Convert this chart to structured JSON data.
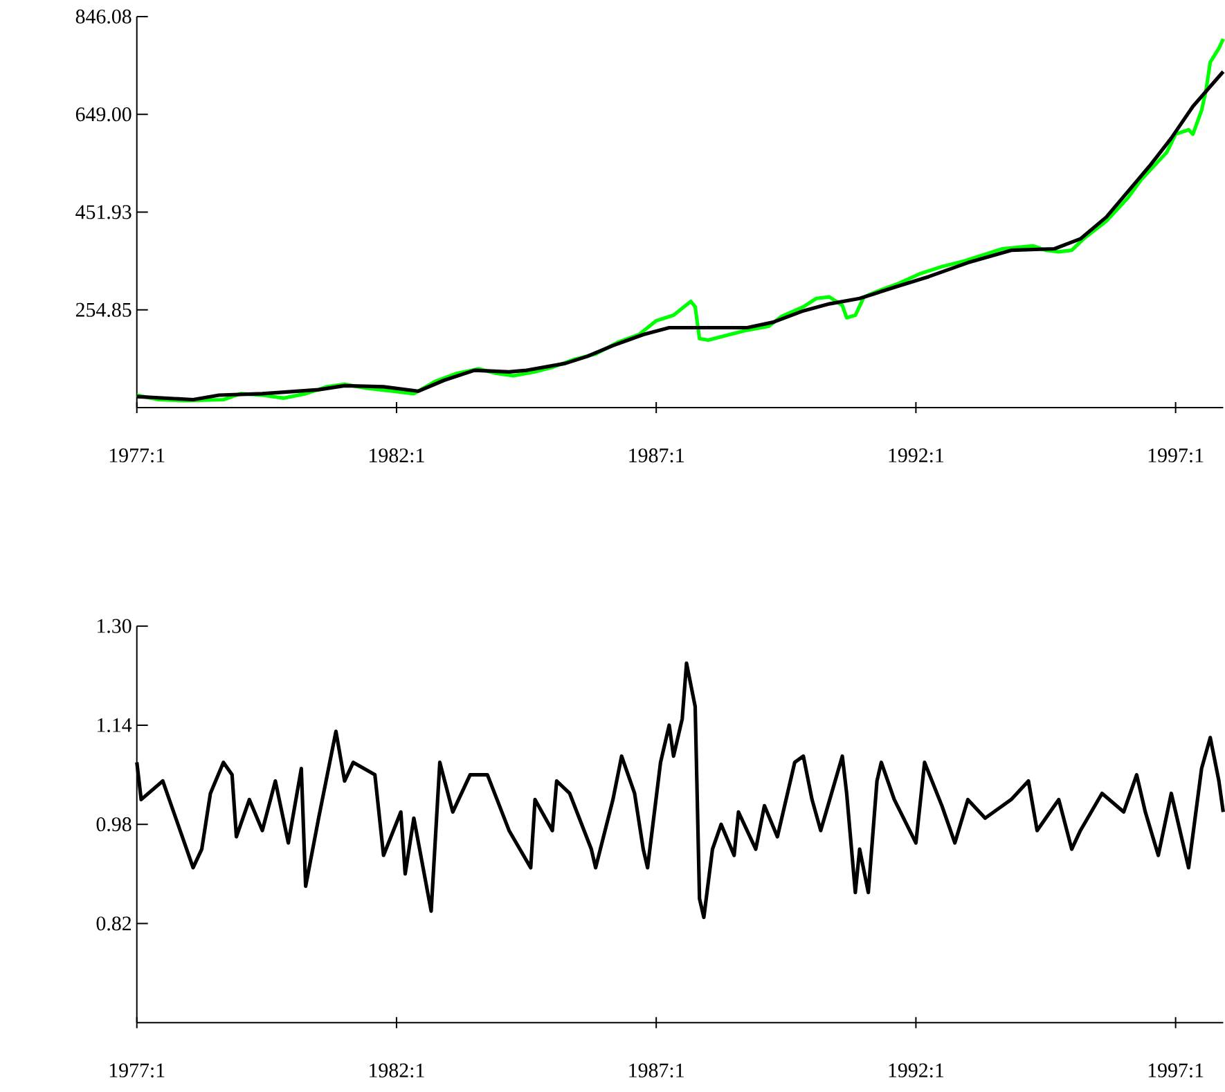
{
  "chart_data": [
    {
      "type": "line",
      "xlim": [
        "1977-01",
        "1997-12"
      ],
      "ylim": [
        57.77,
        846.08
      ],
      "xticks": [
        {
          "value": "1977-01",
          "label": "1977:1"
        },
        {
          "value": "1982-01",
          "label": "1982:1"
        },
        {
          "value": "1987-01",
          "label": "1987:1"
        },
        {
          "value": "1992-01",
          "label": "1992:1"
        },
        {
          "value": "1997-01",
          "label": "1997:1"
        }
      ],
      "yticks": [
        {
          "value": 254.85,
          "label": "254.85"
        },
        {
          "value": 451.93,
          "label": "451.93"
        },
        {
          "value": 649.0,
          "label": "649.00"
        },
        {
          "value": 846.08,
          "label": "846.08"
        }
      ],
      "series": [
        {
          "color": "#00ff00",
          "x": [
            "1977-01",
            "1977-06",
            "1977-12",
            "1978-09",
            "1979-01",
            "1979-06",
            "1979-11",
            "1980-04",
            "1980-09",
            "1981-01",
            "1981-06",
            "1981-12",
            "1982-05",
            "1982-10",
            "1983-03",
            "1983-08",
            "1983-12",
            "1984-04",
            "1984-09",
            "1985-01",
            "1985-06",
            "1985-11",
            "1986-04",
            "1986-09",
            "1987-01",
            "1987-05",
            "1987-09",
            "1987-10",
            "1987-11",
            "1988-01",
            "1988-05",
            "1988-10",
            "1989-03",
            "1989-06",
            "1989-11",
            "1990-02",
            "1990-05",
            "1990-08",
            "1990-09",
            "1990-11",
            "1991-01",
            "1991-04",
            "1991-09",
            "1992-02",
            "1992-07",
            "1992-12",
            "1993-04",
            "1993-09",
            "1994-04",
            "1994-07",
            "1994-10",
            "1995-01",
            "1995-04",
            "1995-09",
            "1996-02",
            "1996-05",
            "1996-09",
            "1996-11",
            "1997-01",
            "1997-04",
            "1997-05",
            "1997-07",
            "1997-08",
            "1997-09",
            "1997-11",
            "1997-12"
          ],
          "values": [
            83,
            74,
            72,
            74,
            86,
            83,
            77,
            86,
            100,
            105,
            97,
            91,
            86,
            111,
            127,
            136,
            127,
            122,
            130,
            139,
            155,
            166,
            189,
            205,
            233,
            244,
            272,
            261,
            197,
            194,
            203,
            214,
            222,
            242,
            261,
            278,
            281,
            264,
            239,
            244,
            281,
            292,
            308,
            328,
            342,
            353,
            364,
            378,
            384,
            375,
            372,
            375,
            400,
            434,
            481,
            517,
            554,
            573,
            609,
            618,
            609,
            657,
            696,
            754,
            782,
            801
          ]
        },
        {
          "color": "#000000",
          "x": [
            "1977-01",
            "1978-02",
            "1978-08",
            "1979-06",
            "1980-07",
            "1981-01",
            "1981-10",
            "1982-06",
            "1982-12",
            "1983-07",
            "1984-03",
            "1984-07",
            "1985-04",
            "1985-09",
            "1986-03",
            "1986-10",
            "1987-04",
            "1988-10",
            "1989-04",
            "1989-11",
            "1990-05",
            "1990-12",
            "1991-09",
            "1992-04",
            "1993-01",
            "1993-11",
            "1994-09",
            "1995-03",
            "1995-09",
            "1996-07",
            "1996-12",
            "1997-05",
            "1997-12"
          ],
          "values": [
            80,
            74,
            83,
            86,
            94,
            102,
            100,
            91,
            113,
            133,
            130,
            133,
            147,
            161,
            183,
            205,
            219,
            219,
            230,
            253,
            267,
            278,
            303,
            322,
            350,
            375,
            378,
            398,
            442,
            545,
            601,
            665,
            735
          ]
        }
      ]
    },
    {
      "type": "line",
      "xlim": [
        "1977-01",
        "1997-12"
      ],
      "ylim": [
        0.66,
        1.3
      ],
      "xticks": [
        {
          "value": "1977-01",
          "label": "1977:1"
        },
        {
          "value": "1982-01",
          "label": "1982:1"
        },
        {
          "value": "1987-01",
          "label": "1987:1"
        },
        {
          "value": "1992-01",
          "label": "1992:1"
        },
        {
          "value": "1997-01",
          "label": "1997:1"
        }
      ],
      "yticks": [
        {
          "value": 0.82,
          "label": "0.82"
        },
        {
          "value": 0.98,
          "label": "0.98"
        },
        {
          "value": 1.14,
          "label": "1.14"
        },
        {
          "value": 1.3,
          "label": "1.30"
        }
      ],
      "series": [
        {
          "color": "#000000",
          "x": [
            "1977-01",
            "1977-02",
            "1977-07",
            "1977-10",
            "1978-02",
            "1978-04",
            "1978-06",
            "1978-09",
            "1978-11",
            "1978-12",
            "1979-03",
            "1979-06",
            "1979-09",
            "1979-12",
            "1980-03",
            "1980-04",
            "1980-07",
            "1980-11",
            "1981-01",
            "1981-03",
            "1981-08",
            "1981-10",
            "1982-02",
            "1982-03",
            "1982-05",
            "1982-09",
            "1982-11",
            "1983-02",
            "1983-06",
            "1983-10",
            "1984-03",
            "1984-08",
            "1984-09",
            "1985-01",
            "1985-02",
            "1985-05",
            "1985-10",
            "1985-11",
            "1986-03",
            "1986-05",
            "1986-08",
            "1986-10",
            "1986-11",
            "1987-02",
            "1987-04",
            "1987-05",
            "1987-07",
            "1987-08",
            "1987-10",
            "1987-11",
            "1987-12",
            "1988-02",
            "1988-04",
            "1988-07",
            "1988-08",
            "1988-12",
            "1989-02",
            "1989-05",
            "1989-09",
            "1989-11",
            "1990-01",
            "1990-03",
            "1990-08",
            "1990-09",
            "1990-11",
            "1990-12",
            "1991-02",
            "1991-04",
            "1991-05",
            "1991-08",
            "1992-01",
            "1992-03",
            "1992-07",
            "1992-10",
            "1993-01",
            "1993-05",
            "1993-11",
            "1994-03",
            "1994-05",
            "1994-10",
            "1995-01",
            "1995-03",
            "1995-08",
            "1996-01",
            "1996-04",
            "1996-06",
            "1996-09",
            "1996-12",
            "1997-04",
            "1997-07",
            "1997-09",
            "1997-11",
            "1997-12"
          ],
          "values": [
            1.08,
            1.02,
            1.05,
            0.99,
            0.91,
            0.94,
            1.03,
            1.08,
            1.06,
            0.96,
            1.02,
            0.97,
            1.05,
            0.95,
            1.07,
            0.88,
            0.99,
            1.13,
            1.05,
            1.08,
            1.06,
            0.93,
            1.0,
            0.9,
            0.99,
            0.84,
            1.08,
            1.0,
            1.06,
            1.06,
            0.97,
            0.91,
            1.02,
            0.97,
            1.05,
            1.03,
            0.94,
            0.91,
            1.02,
            1.09,
            1.03,
            0.94,
            0.91,
            1.08,
            1.14,
            1.09,
            1.15,
            1.24,
            1.17,
            0.86,
            0.83,
            0.94,
            0.98,
            0.93,
            1.0,
            0.94,
            1.01,
            0.96,
            1.08,
            1.09,
            1.02,
            0.97,
            1.09,
            1.03,
            0.87,
            0.94,
            0.87,
            1.05,
            1.08,
            1.02,
            0.95,
            1.08,
            1.01,
            0.95,
            1.02,
            0.99,
            1.02,
            1.05,
            0.97,
            1.02,
            0.94,
            0.97,
            1.03,
            1.0,
            1.06,
            1.0,
            0.93,
            1.03,
            0.91,
            1.07,
            1.12,
            1.05,
            1.0
          ]
        }
      ]
    }
  ]
}
